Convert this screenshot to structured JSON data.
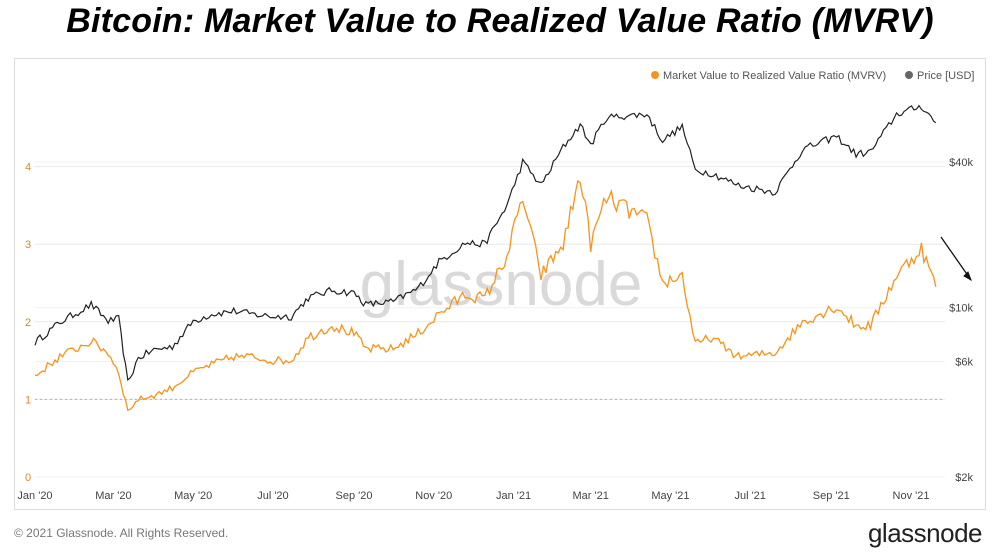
{
  "title": "Bitcoin: Market Value to Realized Value Ratio (MVRV)",
  "watermark": "glassnode",
  "footer": {
    "copyright": "© 2021 Glassnode. All Rights Reserved.",
    "logo": "glassnode"
  },
  "colors": {
    "mvrv": "#f7931a",
    "price": "#222222",
    "grid": "#e8e8e8",
    "ref_line": "#b0b0b0"
  },
  "chart_data": {
    "type": "line",
    "legend_placement": "top-right",
    "x_ticks": [
      "Jan '20",
      "Mar '20",
      "May '20",
      "Jul '20",
      "Sep '20",
      "Nov '20",
      "Jan '21",
      "Mar '21",
      "May '21",
      "Jul '21",
      "Sep '21",
      "Nov '21"
    ],
    "y_left": {
      "ticks": [
        "0",
        "1",
        "2",
        "3",
        "4"
      ],
      "range": [
        0,
        5
      ]
    },
    "y_right": {
      "scale": "log",
      "ticks": [
        "$2k",
        "$6k",
        "$10k",
        "$40k"
      ],
      "tick_values": [
        2000,
        6000,
        10000,
        40000
      ],
      "range": [
        2000,
        80000
      ]
    },
    "reference_line": {
      "axis": "left",
      "value": 1,
      "style": "dotted"
    },
    "series": [
      {
        "name": "Market Value to Realized Value Ratio (MVRV)",
        "axis": "left",
        "points": [
          [
            "2020-01-01",
            1.3
          ],
          [
            "2020-01-20",
            1.55
          ],
          [
            "2020-02-13",
            1.75
          ],
          [
            "2020-02-26",
            1.6
          ],
          [
            "2020-03-05",
            1.35
          ],
          [
            "2020-03-12",
            0.85
          ],
          [
            "2020-03-20",
            1.0
          ],
          [
            "2020-04-01",
            1.05
          ],
          [
            "2020-04-15",
            1.15
          ],
          [
            "2020-05-01",
            1.35
          ],
          [
            "2020-05-15",
            1.45
          ],
          [
            "2020-06-01",
            1.55
          ],
          [
            "2020-06-15",
            1.55
          ],
          [
            "2020-07-01",
            1.5
          ],
          [
            "2020-07-15",
            1.5
          ],
          [
            "2020-07-28",
            1.8
          ],
          [
            "2020-08-15",
            1.95
          ],
          [
            "2020-09-01",
            1.85
          ],
          [
            "2020-09-10",
            1.65
          ],
          [
            "2020-10-01",
            1.65
          ],
          [
            "2020-10-20",
            1.85
          ],
          [
            "2020-11-05",
            2.1
          ],
          [
            "2020-11-25",
            2.35
          ],
          [
            "2020-12-10",
            2.3
          ],
          [
            "2020-12-27",
            2.85
          ],
          [
            "2021-01-08",
            3.6
          ],
          [
            "2021-01-22",
            2.6
          ],
          [
            "2021-02-08",
            3.0
          ],
          [
            "2021-02-21",
            3.9
          ],
          [
            "2021-03-01",
            3.0
          ],
          [
            "2021-03-13",
            3.6
          ],
          [
            "2021-04-13",
            3.3
          ],
          [
            "2021-04-25",
            2.5
          ],
          [
            "2021-05-10",
            2.6
          ],
          [
            "2021-05-20",
            1.7
          ],
          [
            "2021-06-01",
            1.8
          ],
          [
            "2021-06-22",
            1.55
          ],
          [
            "2021-07-20",
            1.6
          ],
          [
            "2021-08-10",
            2.0
          ],
          [
            "2021-09-05",
            2.2
          ],
          [
            "2021-09-20",
            1.95
          ],
          [
            "2021-10-01",
            1.95
          ],
          [
            "2021-10-21",
            2.6
          ],
          [
            "2021-11-09",
            2.95
          ],
          [
            "2021-11-20",
            2.45
          ]
        ]
      },
      {
        "name": "Price [USD]",
        "axis": "right",
        "points": [
          [
            "2020-01-01",
            7200
          ],
          [
            "2020-01-20",
            8700
          ],
          [
            "2020-02-13",
            10300
          ],
          [
            "2020-02-26",
            8800
          ],
          [
            "2020-03-05",
            9000
          ],
          [
            "2020-03-12",
            4900
          ],
          [
            "2020-03-20",
            6200
          ],
          [
            "2020-04-01",
            6700
          ],
          [
            "2020-04-15",
            6900
          ],
          [
            "2020-05-01",
            8800
          ],
          [
            "2020-05-15",
            9400
          ],
          [
            "2020-06-01",
            9700
          ],
          [
            "2020-06-15",
            9400
          ],
          [
            "2020-07-01",
            9200
          ],
          [
            "2020-07-15",
            9200
          ],
          [
            "2020-07-28",
            11000
          ],
          [
            "2020-08-15",
            11800
          ],
          [
            "2020-09-01",
            11500
          ],
          [
            "2020-09-10",
            10300
          ],
          [
            "2020-10-01",
            10600
          ],
          [
            "2020-10-20",
            12000
          ],
          [
            "2020-11-05",
            15500
          ],
          [
            "2020-11-25",
            18500
          ],
          [
            "2020-12-10",
            18300
          ],
          [
            "2020-12-27",
            26500
          ],
          [
            "2021-01-08",
            40000
          ],
          [
            "2021-01-22",
            32000
          ],
          [
            "2021-02-08",
            46000
          ],
          [
            "2021-02-21",
            57000
          ],
          [
            "2021-03-01",
            47000
          ],
          [
            "2021-03-13",
            61000
          ],
          [
            "2021-04-13",
            63000
          ],
          [
            "2021-04-25",
            49000
          ],
          [
            "2021-05-10",
            56000
          ],
          [
            "2021-05-20",
            37000
          ],
          [
            "2021-06-01",
            36000
          ],
          [
            "2021-06-22",
            32000
          ],
          [
            "2021-07-20",
            30000
          ],
          [
            "2021-08-10",
            45000
          ],
          [
            "2021-09-05",
            51000
          ],
          [
            "2021-09-20",
            43000
          ],
          [
            "2021-10-01",
            44000
          ],
          [
            "2021-10-21",
            63000
          ],
          [
            "2021-11-09",
            68000
          ],
          [
            "2021-11-20",
            58000
          ]
        ]
      }
    ],
    "annotations": [
      {
        "type": "arrow",
        "direction": "down-right",
        "near": "2021-11-20"
      }
    ]
  }
}
